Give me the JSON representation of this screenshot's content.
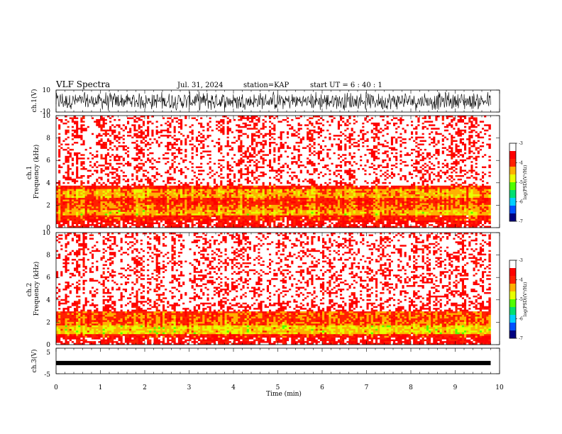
{
  "header": {
    "title": "VLF Spectra",
    "date": "Jul. 31, 2024",
    "station": "station=KAP",
    "start": "start UT =  6 : 40 : 1"
  },
  "chart_data": [
    {
      "type": "line",
      "name": "ch1-waveform",
      "ylabel": "ch.1(V)",
      "ylim": [
        -10,
        10
      ],
      "ytick_labels": [
        "-10",
        "10"
      ],
      "xlim": [
        0,
        10
      ],
      "data_end_min": 9.8,
      "series_color": "#000000"
    },
    {
      "type": "heatmap",
      "name": "ch1-spectrogram",
      "ylabel": "ch.1\nFrequency (kHz)",
      "ylim": [
        0,
        10
      ],
      "ytick_labels": [
        "0",
        "2",
        "4",
        "6",
        "8",
        "10"
      ],
      "xlim": [
        0,
        10
      ],
      "data_end_min": 9.8,
      "bands_khz": [
        {
          "from": 0.0,
          "to": 0.6,
          "level": -3.6
        },
        {
          "from": 0.6,
          "to": 1.1,
          "level": -3.9
        },
        {
          "from": 1.1,
          "to": 1.6,
          "level": -4.5
        },
        {
          "from": 1.6,
          "to": 2.0,
          "level": -4.2
        },
        {
          "from": 2.0,
          "to": 2.6,
          "level": -4.0
        },
        {
          "from": 2.6,
          "to": 3.4,
          "level": -4.4
        },
        {
          "from": 3.4,
          "to": 3.8,
          "level": -3.9
        },
        {
          "from": 3.8,
          "to": 10.0,
          "level": -3.4
        }
      ],
      "colorbar": {
        "label": "log(PSD)(V²/Hz)",
        "ticks": [
          "-3",
          "-4",
          "-5",
          "-6",
          "-7"
        ],
        "min": -7,
        "max": -3
      }
    },
    {
      "type": "heatmap",
      "name": "ch2-spectrogram",
      "ylabel": "ch.2\nFrequency (kHz)",
      "ylim": [
        0,
        10
      ],
      "ytick_labels": [
        "0",
        "2",
        "4",
        "6",
        "8",
        "10"
      ],
      "xlim": [
        0,
        10
      ],
      "data_end_min": 9.8,
      "bands_khz": [
        {
          "from": 0.0,
          "to": 0.7,
          "level": -3.6
        },
        {
          "from": 0.7,
          "to": 1.0,
          "level": -3.9
        },
        {
          "from": 1.0,
          "to": 1.7,
          "level": -4.6
        },
        {
          "from": 1.7,
          "to": 2.1,
          "level": -4.2
        },
        {
          "from": 2.1,
          "to": 2.9,
          "level": -4.1
        },
        {
          "from": 2.9,
          "to": 10.0,
          "level": -3.4
        }
      ],
      "colorbar": {
        "label": "log(PSD)(V²/Hz)",
        "ticks": [
          "-3",
          "-4",
          "-5",
          "-6",
          "-7"
        ],
        "min": -7,
        "max": -3
      }
    },
    {
      "type": "line",
      "name": "ch3-waveform",
      "ylabel": "ch.3(V)",
      "ylim": [
        -5,
        5
      ],
      "ytick_labels": [
        "-5",
        "5"
      ],
      "xlim": [
        0,
        10
      ],
      "data_end_min": 9.8,
      "level_v": -0.8,
      "series_color": "#000000"
    }
  ],
  "x_axis": {
    "label": "Time (min)",
    "tick_labels": [
      "0",
      "1",
      "2",
      "3",
      "4",
      "5",
      "6",
      "7",
      "8",
      "9",
      "10"
    ]
  },
  "colormap": [
    "#000080",
    "#0050ff",
    "#00d0ff",
    "#00e070",
    "#50ff00",
    "#e8ff00",
    "#ffb000",
    "#ff2000",
    "#ff0000",
    "#ffffff"
  ]
}
